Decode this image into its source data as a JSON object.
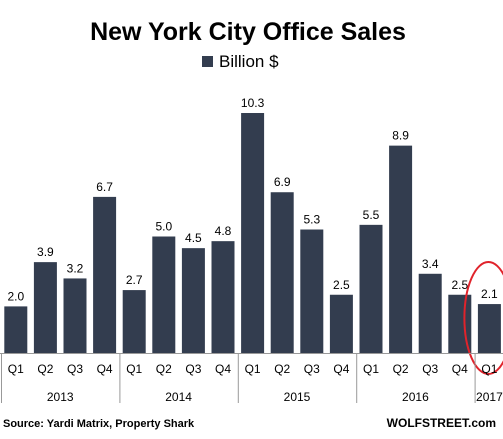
{
  "chart_data": {
    "type": "bar",
    "title": "New York City Office Sales",
    "legend": "Billion $",
    "legend_position": "top-center",
    "grid": false,
    "ylim": [
      0,
      11
    ],
    "categories": [
      "Q1",
      "Q2",
      "Q3",
      "Q4",
      "Q1",
      "Q2",
      "Q3",
      "Q4",
      "Q1",
      "Q2",
      "Q3",
      "Q4",
      "Q1",
      "Q2",
      "Q3",
      "Q4",
      "Q1"
    ],
    "groups": [
      {
        "label": "2013",
        "count": 4
      },
      {
        "label": "2014",
        "count": 4
      },
      {
        "label": "2015",
        "count": 4
      },
      {
        "label": "2016",
        "count": 4
      },
      {
        "label": "2017",
        "count": 1
      }
    ],
    "series": [
      {
        "name": "Billion $",
        "values": [
          2.0,
          3.9,
          3.2,
          6.7,
          2.7,
          5.0,
          4.5,
          4.8,
          10.3,
          6.9,
          5.3,
          2.5,
          5.5,
          8.9,
          3.4,
          2.5,
          2.1
        ]
      }
    ],
    "value_labels": [
      "2.0",
      "3.9",
      "3.2",
      "6.7",
      "2.7",
      "5.0",
      "4.5",
      "4.8",
      "10.3",
      "6.9",
      "5.3",
      "2.5",
      "5.5",
      "8.9",
      "3.4",
      "2.5",
      "2.1"
    ],
    "highlight_index": 16,
    "source": "Source: Yardi Matrix, Property Shark",
    "watermark": "WOLFSTREET.com",
    "colors": {
      "bar": "#333d4f",
      "highlight": "#e0232b",
      "axis": "#999999"
    }
  }
}
